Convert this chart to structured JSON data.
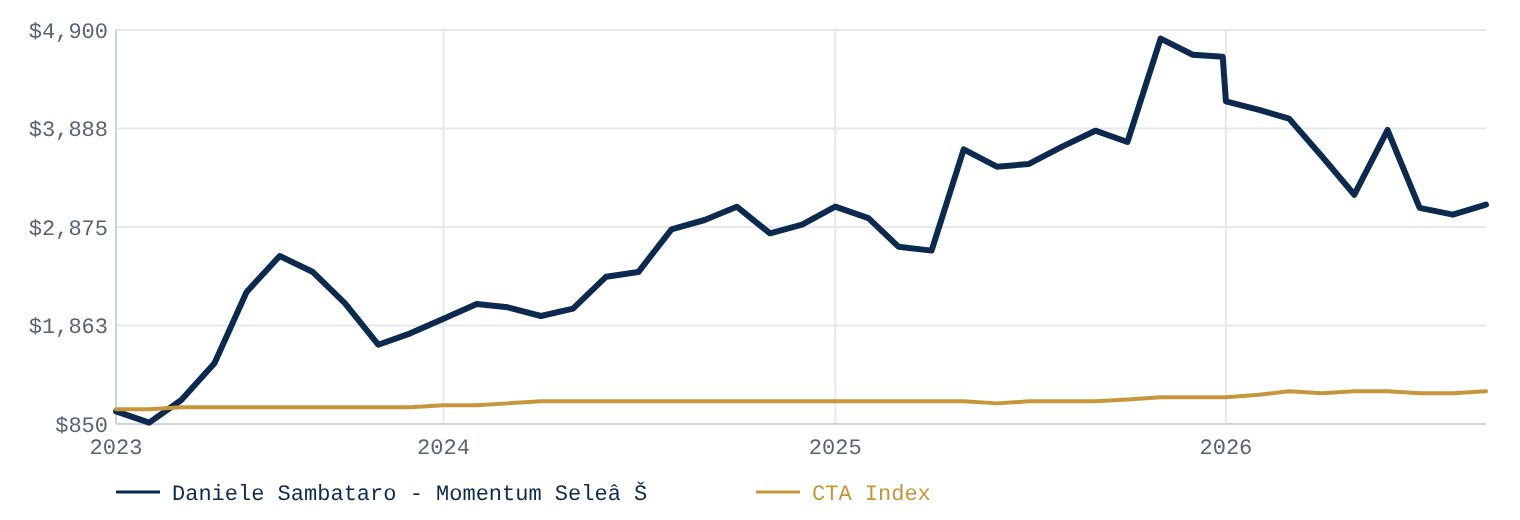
{
  "chart_data": {
    "type": "line",
    "xlim": [
      "2023-03",
      "2026-09"
    ],
    "xticks": [
      {
        "value": "2023-03",
        "label": "2023"
      },
      {
        "value": "2024-01",
        "label": "2024"
      },
      {
        "value": "2025-01",
        "label": "2025"
      },
      {
        "value": "2026-01",
        "label": "2026"
      }
    ],
    "ylim": [
      850,
      4900
    ],
    "yticks": [
      {
        "value": 850,
        "label": "$850"
      },
      {
        "value": 1863,
        "label": "$1,863"
      },
      {
        "value": 2875,
        "label": "$2,875"
      },
      {
        "value": 3888,
        "label": "$3,888"
      },
      {
        "value": 4900,
        "label": "$4,900"
      }
    ],
    "grid": true,
    "legend": "bottom",
    "line_style": "solid",
    "marker": "none",
    "series": [
      {
        "name": "Daniele Sambataro - Momentum Seleâ Š",
        "color": "#0c2a4f",
        "x": [
          "2023-03",
          "2023-04",
          "2023-05",
          "2023-06",
          "2023-07",
          "2023-08",
          "2023-09",
          "2023-10",
          "2023-11",
          "2023-12",
          "2024-01",
          "2024-02",
          "2024-03",
          "2024-04",
          "2024-05",
          "2024-06",
          "2024-07",
          "2024-08",
          "2024-09",
          "2024-10",
          "2024-11",
          "2024-12",
          "2025-01",
          "2025-02",
          "2025-03",
          "2025-04",
          "2025-05",
          "2025-06",
          "2025-07",
          "2025-08",
          "2025-09",
          "2025-10",
          "2025-11",
          "2025-12",
          "2025-12-29",
          "2026-01",
          "2026-02",
          "2026-03",
          "2026-04",
          "2026-05",
          "2026-06",
          "2026-07",
          "2026-08",
          "2026-09"
        ],
        "values": [
          980,
          864,
          1097,
          1474,
          2207,
          2577,
          2412,
          2090,
          1665,
          1782,
          1933,
          2084,
          2049,
          1960,
          2036,
          2364,
          2412,
          2851,
          2947,
          3084,
          2810,
          2899,
          3084,
          2967,
          2673,
          2632,
          3673,
          3495,
          3523,
          3701,
          3865,
          3749,
          4811,
          4646,
          4626,
          4167,
          4078,
          3989,
          3598,
          3207,
          3872,
          3071,
          3002,
          3105
        ]
      },
      {
        "name": "CTA Index",
        "color": "#c8963a",
        "x": [
          "2023-03",
          "2023-04",
          "2023-05",
          "2023-06",
          "2023-07",
          "2023-08",
          "2023-09",
          "2023-10",
          "2023-11",
          "2023-12",
          "2024-01",
          "2024-02",
          "2024-03",
          "2024-04",
          "2024-05",
          "2024-06",
          "2024-07",
          "2024-08",
          "2024-09",
          "2024-10",
          "2024-11",
          "2024-12",
          "2025-01",
          "2025-02",
          "2025-03",
          "2025-04",
          "2025-05",
          "2025-06",
          "2025-07",
          "2025-08",
          "2025-09",
          "2025-10",
          "2025-11",
          "2025-12",
          "2026-01",
          "2026-02",
          "2026-03",
          "2026-04",
          "2026-05",
          "2026-06",
          "2026-07",
          "2026-08",
          "2026-09"
        ],
        "values": [
          1001,
          1001,
          1021,
          1021,
          1021,
          1021,
          1021,
          1021,
          1021,
          1021,
          1042,
          1042,
          1062,
          1083,
          1083,
          1083,
          1083,
          1083,
          1083,
          1083,
          1083,
          1083,
          1083,
          1083,
          1083,
          1083,
          1083,
          1062,
          1083,
          1083,
          1083,
          1103,
          1124,
          1124,
          1124,
          1151,
          1186,
          1165,
          1186,
          1186,
          1165,
          1165,
          1186
        ]
      }
    ]
  }
}
